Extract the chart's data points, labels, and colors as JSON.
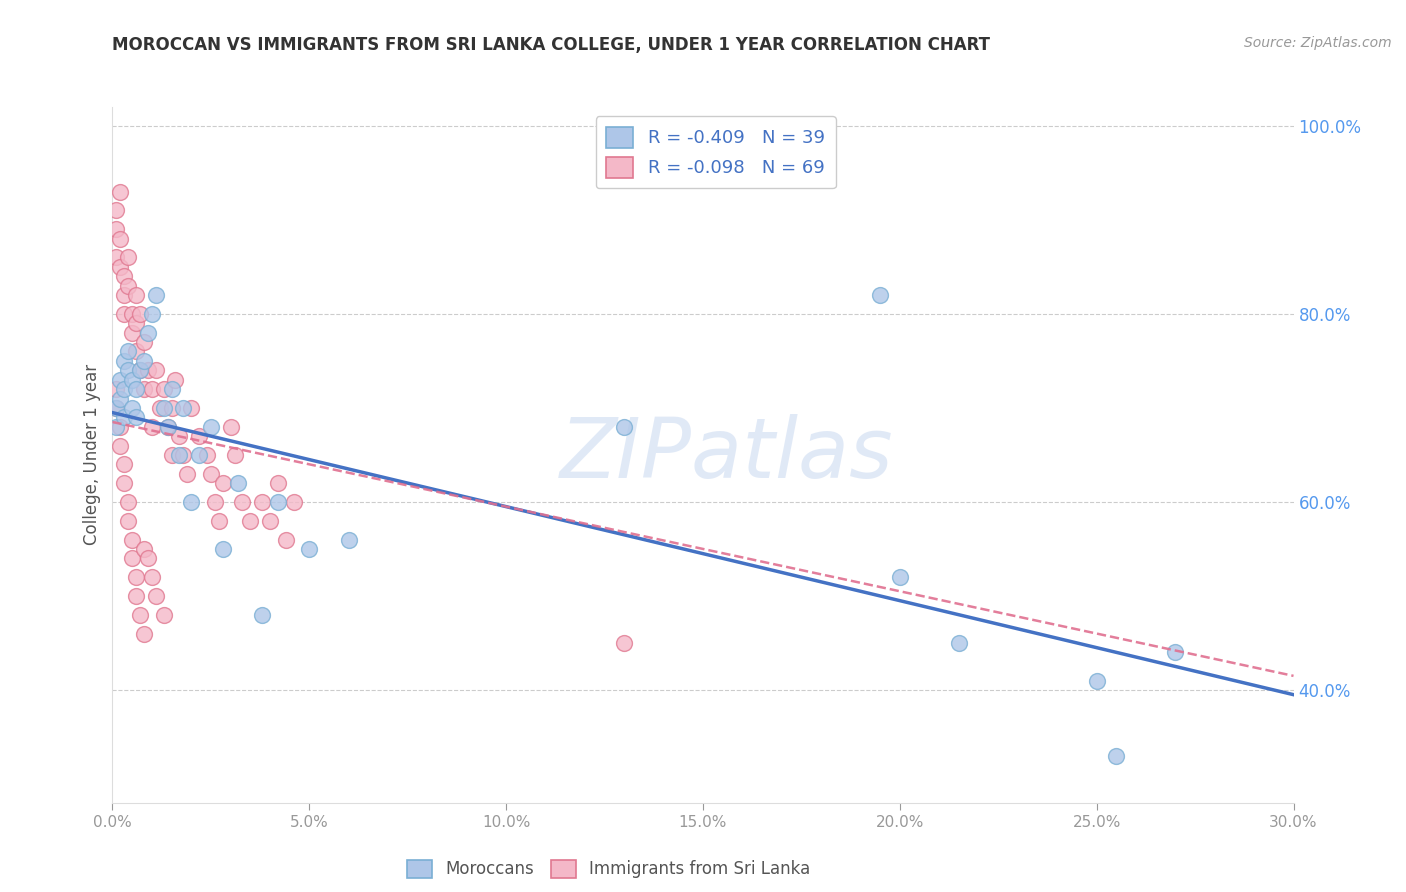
{
  "title": "MOROCCAN VS IMMIGRANTS FROM SRI LANKA COLLEGE, UNDER 1 YEAR CORRELATION CHART",
  "source": "Source: ZipAtlas.com",
  "ylabel": "College, Under 1 year",
  "x_min": 0.0,
  "x_max": 0.3,
  "y_min": 0.28,
  "y_max": 1.02,
  "x_ticks": [
    0.0,
    0.05,
    0.1,
    0.15,
    0.2,
    0.25,
    0.3
  ],
  "y_ticks": [
    0.4,
    0.6,
    0.8,
    1.0
  ],
  "moroccan_color": "#aec6e8",
  "moroccan_edge": "#7aafd4",
  "srilanka_color": "#f4b8c8",
  "srilanka_edge": "#e07890",
  "moroccan_line_color": "#4472c4",
  "srilanka_line_color": "#e07090",
  "moroccan_line_y0": 0.695,
  "moroccan_line_y1": 0.395,
  "srilanka_line_y0": 0.685,
  "srilanka_line_y1": 0.415,
  "legend_text_1": "R = -0.409   N = 39",
  "legend_text_2": "R = -0.098   N = 69",
  "watermark": "ZIPatlas",
  "background_color": "#ffffff",
  "grid_color": "#cccccc",
  "moroccan_x": [
    0.001,
    0.001,
    0.002,
    0.002,
    0.003,
    0.003,
    0.003,
    0.004,
    0.004,
    0.005,
    0.005,
    0.006,
    0.006,
    0.007,
    0.008,
    0.009,
    0.01,
    0.011,
    0.013,
    0.014,
    0.015,
    0.017,
    0.018,
    0.02,
    0.022,
    0.025,
    0.028,
    0.032,
    0.038,
    0.042,
    0.05,
    0.06,
    0.13,
    0.195,
    0.2,
    0.215,
    0.25,
    0.27,
    0.255
  ],
  "moroccan_y": [
    0.7,
    0.68,
    0.73,
    0.71,
    0.75,
    0.72,
    0.69,
    0.74,
    0.76,
    0.73,
    0.7,
    0.72,
    0.69,
    0.74,
    0.75,
    0.78,
    0.8,
    0.82,
    0.7,
    0.68,
    0.72,
    0.65,
    0.7,
    0.6,
    0.65,
    0.68,
    0.55,
    0.62,
    0.48,
    0.6,
    0.55,
    0.56,
    0.68,
    0.82,
    0.52,
    0.45,
    0.41,
    0.44,
    0.33
  ],
  "srilanka_x": [
    0.001,
    0.001,
    0.001,
    0.002,
    0.002,
    0.002,
    0.003,
    0.003,
    0.003,
    0.004,
    0.004,
    0.005,
    0.005,
    0.006,
    0.006,
    0.006,
    0.007,
    0.007,
    0.008,
    0.008,
    0.009,
    0.01,
    0.01,
    0.011,
    0.012,
    0.013,
    0.014,
    0.015,
    0.015,
    0.016,
    0.017,
    0.018,
    0.019,
    0.02,
    0.022,
    0.024,
    0.025,
    0.026,
    0.027,
    0.028,
    0.03,
    0.031,
    0.033,
    0.035,
    0.038,
    0.04,
    0.042,
    0.044,
    0.046,
    0.001,
    0.001,
    0.002,
    0.002,
    0.003,
    0.003,
    0.004,
    0.004,
    0.005,
    0.005,
    0.006,
    0.006,
    0.007,
    0.008,
    0.008,
    0.009,
    0.01,
    0.011,
    0.013,
    0.13
  ],
  "srilanka_y": [
    0.91,
    0.89,
    0.86,
    0.93,
    0.88,
    0.85,
    0.84,
    0.82,
    0.8,
    0.86,
    0.83,
    0.8,
    0.78,
    0.82,
    0.79,
    0.76,
    0.8,
    0.74,
    0.77,
    0.72,
    0.74,
    0.72,
    0.68,
    0.74,
    0.7,
    0.72,
    0.68,
    0.7,
    0.65,
    0.73,
    0.67,
    0.65,
    0.63,
    0.7,
    0.67,
    0.65,
    0.63,
    0.6,
    0.58,
    0.62,
    0.68,
    0.65,
    0.6,
    0.58,
    0.6,
    0.58,
    0.62,
    0.56,
    0.6,
    0.72,
    0.7,
    0.68,
    0.66,
    0.64,
    0.62,
    0.6,
    0.58,
    0.56,
    0.54,
    0.52,
    0.5,
    0.48,
    0.46,
    0.55,
    0.54,
    0.52,
    0.5,
    0.48,
    0.45
  ]
}
